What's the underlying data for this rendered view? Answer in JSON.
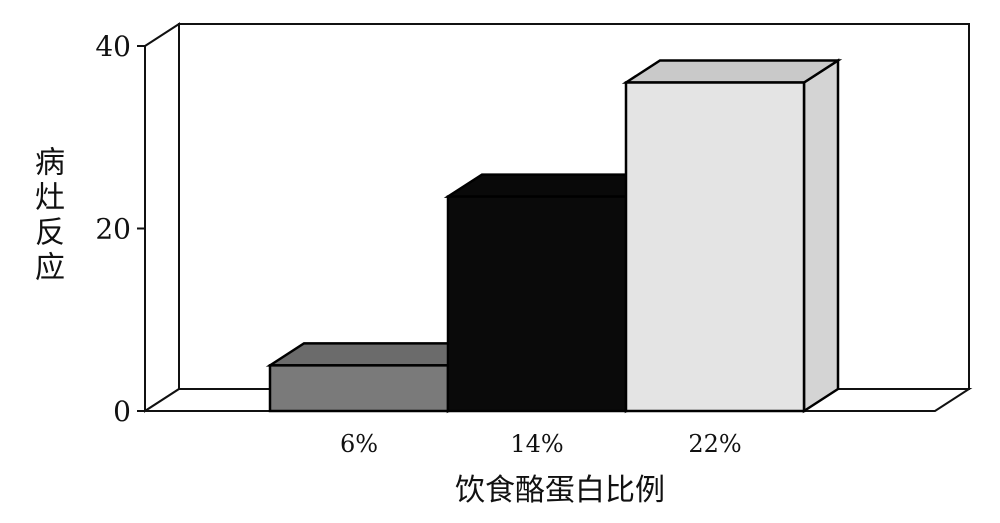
{
  "chart_data": {
    "type": "bar",
    "style": "3d",
    "categories": [
      "6%",
      "14%",
      "22%"
    ],
    "values": [
      5,
      23.5,
      36
    ],
    "bar_colors": [
      "#7a7a7a",
      "#0a0a0a",
      "#e4e4e4"
    ],
    "xlabel": "饮食酪蛋白比例",
    "ylabel": "病灶反应",
    "ylim": [
      0,
      40
    ],
    "yticks": [
      "0",
      "20",
      "40"
    ],
    "grid": false,
    "legend": "none"
  }
}
